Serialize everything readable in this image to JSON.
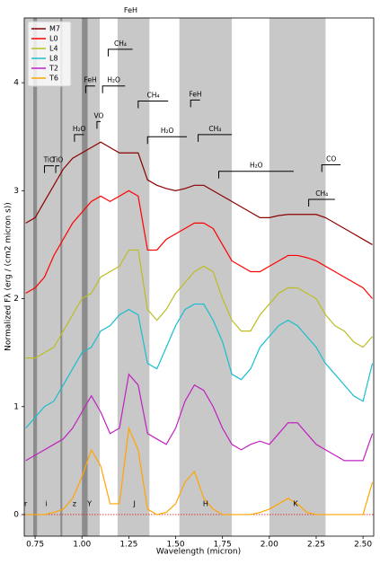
{
  "chart_data": {
    "type": "line",
    "xlabel": "Wavelength (micron)",
    "ylabel": "Normalized Fλ (erg / (cm2 micron s))",
    "xlim": [
      0.692,
      2.557
    ],
    "ylim": [
      -0.2,
      4.6
    ],
    "xticks": [
      0.75,
      {
        "value": 1,
        "label": "1.00"
      },
      1.25,
      {
        "value": 1.5,
        "label": "1.50"
      },
      1.75,
      {
        "value": 2,
        "label": "2.00"
      },
      2.25,
      {
        "value": 2.5,
        "label": "2.50"
      }
    ],
    "yticks": [
      0,
      1,
      2,
      3,
      4
    ],
    "legend": "upper left",
    "zero_line_color": "#d62728",
    "band_color": "#c8c8c8",
    "band_regions": [
      [
        0.692,
        1.095
      ],
      [
        1.19,
        1.36
      ],
      [
        1.52,
        1.8
      ],
      [
        2.0,
        2.3
      ]
    ],
    "telluric_color": "#8c8c8c",
    "telluric_regions": [
      [
        0.74,
        0.76
      ],
      [
        0.885,
        0.895
      ],
      [
        1.0,
        1.03
      ]
    ],
    "x": [
      0.7,
      0.75,
      0.8,
      0.85,
      0.9,
      0.95,
      1.0,
      1.05,
      1.1,
      1.15,
      1.2,
      1.25,
      1.3,
      1.35,
      1.4,
      1.45,
      1.5,
      1.55,
      1.6,
      1.65,
      1.7,
      1.75,
      1.8,
      1.85,
      1.9,
      1.95,
      2.0,
      2.05,
      2.1,
      2.15,
      2.2,
      2.25,
      2.3,
      2.35,
      2.4,
      2.45,
      2.5,
      2.55
    ],
    "series": [
      {
        "name": "M7",
        "color": "#8b0000",
        "values": [
          2.7,
          2.75,
          2.9,
          3.05,
          3.2,
          3.3,
          3.35,
          3.4,
          3.45,
          3.4,
          3.35,
          3.35,
          3.35,
          3.1,
          3.05,
          3.02,
          3.0,
          3.02,
          3.05,
          3.05,
          3.0,
          2.95,
          2.9,
          2.85,
          2.8,
          2.75,
          2.75,
          2.77,
          2.78,
          2.78,
          2.78,
          2.78,
          2.75,
          2.7,
          2.65,
          2.6,
          2.55,
          2.5
        ]
      },
      {
        "name": "L0",
        "color": "#ff0000",
        "values": [
          2.05,
          2.1,
          2.2,
          2.4,
          2.55,
          2.7,
          2.8,
          2.9,
          2.95,
          2.9,
          2.95,
          3.0,
          2.95,
          2.45,
          2.45,
          2.55,
          2.6,
          2.65,
          2.7,
          2.7,
          2.65,
          2.5,
          2.35,
          2.3,
          2.25,
          2.25,
          2.3,
          2.35,
          2.4,
          2.4,
          2.38,
          2.35,
          2.3,
          2.25,
          2.2,
          2.15,
          2.1,
          2.0
        ]
      },
      {
        "name": "L4",
        "color": "#bcbd22",
        "values": [
          1.45,
          1.45,
          1.5,
          1.55,
          1.7,
          1.85,
          2.0,
          2.05,
          2.2,
          2.25,
          2.3,
          2.45,
          2.45,
          1.9,
          1.8,
          1.9,
          2.05,
          2.15,
          2.25,
          2.3,
          2.25,
          2.0,
          1.8,
          1.7,
          1.7,
          1.85,
          1.95,
          2.05,
          2.1,
          2.1,
          2.05,
          2.0,
          1.85,
          1.75,
          1.7,
          1.6,
          1.55,
          1.65
        ]
      },
      {
        "name": "L8",
        "color": "#17becf",
        "values": [
          0.8,
          0.9,
          1.0,
          1.05,
          1.2,
          1.35,
          1.5,
          1.55,
          1.7,
          1.75,
          1.85,
          1.9,
          1.85,
          1.4,
          1.35,
          1.55,
          1.75,
          1.9,
          1.95,
          1.95,
          1.8,
          1.6,
          1.3,
          1.25,
          1.35,
          1.55,
          1.65,
          1.75,
          1.8,
          1.75,
          1.65,
          1.55,
          1.4,
          1.3,
          1.2,
          1.1,
          1.05,
          1.4
        ]
      },
      {
        "name": "T2",
        "color": "#c020c0",
        "values": [
          0.5,
          0.55,
          0.6,
          0.65,
          0.7,
          0.8,
          0.95,
          1.1,
          0.95,
          0.75,
          0.8,
          1.3,
          1.2,
          0.75,
          0.7,
          0.65,
          0.8,
          1.05,
          1.2,
          1.15,
          1.0,
          0.8,
          0.65,
          0.6,
          0.65,
          0.68,
          0.65,
          0.75,
          0.85,
          0.85,
          0.75,
          0.65,
          0.6,
          0.55,
          0.5,
          0.5,
          0.5,
          0.75
        ]
      },
      {
        "name": "T6",
        "color": "#ffa500",
        "values": [
          0.0,
          0.0,
          0.0,
          0.02,
          0.05,
          0.15,
          0.35,
          0.6,
          0.45,
          0.1,
          0.1,
          0.8,
          0.6,
          0.05,
          0.0,
          0.02,
          0.1,
          0.3,
          0.4,
          0.15,
          0.05,
          0.0,
          0.0,
          0.0,
          0.0,
          0.02,
          0.05,
          0.1,
          0.15,
          0.1,
          0.02,
          0.0,
          0.0,
          0.0,
          0.0,
          0.0,
          0.0,
          0.3
        ]
      }
    ],
    "features": [
      {
        "text": "TiO",
        "x": [
          0.8,
          0.85
        ],
        "y": 3.23
      },
      {
        "text": "TiO",
        "x": [
          0.86,
          0.88
        ],
        "y": 3.23
      },
      {
        "text": "H₂O",
        "x": [
          0.96,
          1.01
        ],
        "y": 3.52
      },
      {
        "text": "VO",
        "x": [
          1.08,
          1.1
        ],
        "y": 3.64
      },
      {
        "text": "FeH",
        "x": [
          1.02,
          1.07
        ],
        "y": 3.97
      },
      {
        "text": "H₂O",
        "x": [
          1.11,
          1.23
        ],
        "y": 3.97
      },
      {
        "text": "CH₄",
        "x": [
          1.14,
          1.27
        ],
        "y": 4.31
      },
      {
        "text": "CH₄",
        "x": [
          1.3,
          1.46
        ],
        "y": 3.83
      },
      {
        "text": "FeH",
        "x": [
          1.58,
          1.63
        ],
        "y": 3.84
      },
      {
        "text": "H₂O",
        "x": [
          1.35,
          1.56
        ],
        "y": 3.5
      },
      {
        "text": "CH₄",
        "x": [
          1.62,
          1.8
        ],
        "y": 3.52
      },
      {
        "text": "H₂O",
        "x": [
          1.73,
          2.13
        ],
        "y": 3.18
      },
      {
        "text": "CO",
        "x": [
          2.28,
          2.38
        ],
        "y": 3.24
      },
      {
        "text": "CH₄",
        "x": [
          2.21,
          2.35
        ],
        "y": 2.92
      }
    ],
    "annotations": [
      {
        "text": "FeH",
        "x": 1.26,
        "y": 4.67
      },
      {
        "text": "r",
        "x": 0.7,
        "y": 0.1
      },
      {
        "text": "i",
        "x": 0.81,
        "y": 0.1
      },
      {
        "text": "z",
        "x": 0.96,
        "y": 0.1
      },
      {
        "text": "Y",
        "x": 1.04,
        "y": 0.1
      },
      {
        "text": "J",
        "x": 1.28,
        "y": 0.1
      },
      {
        "text": "H",
        "x": 1.66,
        "y": 0.1
      },
      {
        "text": "K",
        "x": 2.14,
        "y": 0.1
      }
    ]
  }
}
